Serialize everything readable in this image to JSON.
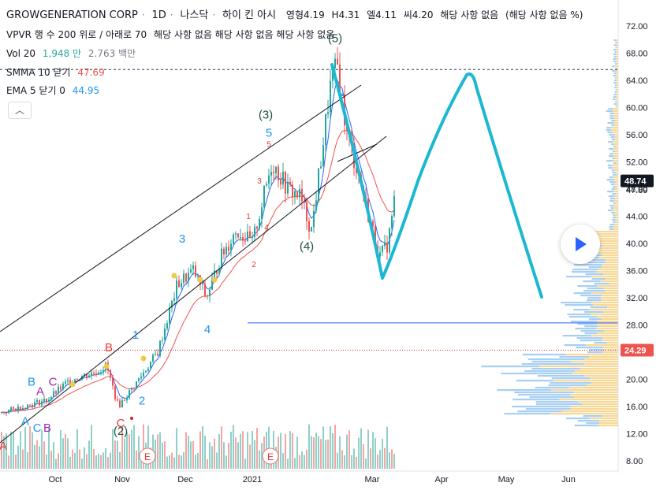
{
  "header": {
    "symbol": "GROWGENERATION CORP",
    "interval": "1D",
    "exchange": "나스닥",
    "source": "하이 킨 아시",
    "open": "영형4.19",
    "high": "H4.31",
    "low": "엘4.11",
    "close": "씨4.20",
    "na1": "해당 사항 없음",
    "na2": "(해당 사항 없음 %)"
  },
  "indicators": {
    "vpvr": "VPVR 행 수 200 위로 / 아래로 70",
    "vpvr_values": "해당 사항 없음 해당 사항 없음 해당 사항 없음",
    "vol_label": "Vol 20",
    "vol_val1": "1,948 만",
    "vol_val2": "2.763 백만",
    "smma_label": "SMMA 10 닫기",
    "smma_val": "47.69",
    "ema_label": "EMA 5 닫기 0",
    "ema_val": "44.95",
    "collapse_glyph": "︿"
  },
  "colors": {
    "up": "#26a69a",
    "down": "#ef5350",
    "smma": "#ef5350",
    "ema": "#2962ff",
    "projection": "#1cb8d2",
    "channel": "#131722",
    "support_line": "#2962ff",
    "wave_count_dark": "#1e5142",
    "wave_count_blue": "#2196f3",
    "abc_red": "#e53935",
    "price_tag_current": "#131722",
    "price_tag_support": "#ef5350"
  },
  "chart_data": {
    "type": "candlestick",
    "y_axis_ticks": [
      "72.00",
      "68.00",
      "64.00",
      "60.00",
      "56.00",
      "52.00",
      "48.00",
      "44.00",
      "40.00",
      "36.00",
      "32.00",
      "28.00",
      "24.00",
      "20.00",
      "16.00",
      "12.00",
      "8.00"
    ],
    "y_range": [
      6,
      74
    ],
    "x_axis_labels": [
      "Oct",
      "Nov",
      "Dec",
      "2021",
      "Mar",
      "Apr",
      "May",
      "Jun"
    ],
    "current_price": "48.74",
    "secondary_price": "47.89",
    "red_dotted_level": "24.29",
    "upper_dotted_level": 65.6,
    "blue_support_level": 28.3,
    "wave_labels": [
      {
        "text": "(5)",
        "price": 69.6,
        "x": 425,
        "color": "#1e5142"
      },
      {
        "text": "(3)",
        "price": 58.4,
        "x": 337,
        "color": "#1e5142"
      },
      {
        "text": "5",
        "price": 55.7,
        "x": 341,
        "color": "#2196f3"
      },
      {
        "text": "(4)",
        "price": 39.0,
        "x": 389,
        "color": "#1e5142"
      },
      {
        "text": "3",
        "price": 40.1,
        "x": 231,
        "color": "#2196f3"
      },
      {
        "text": "4",
        "price": 26.8,
        "x": 263,
        "color": "#2196f3"
      },
      {
        "text": "1",
        "price": 26.0,
        "x": 172,
        "color": "#2196f3"
      },
      {
        "text": "2",
        "price": 16.3,
        "x": 180,
        "color": "#2196f3"
      },
      {
        "text": "B",
        "price": 24.1,
        "x": 138,
        "color": "#e53935"
      },
      {
        "text": "C",
        "price": 13.0,
        "x": 153,
        "color": "#e53935"
      },
      {
        "text": "(2)",
        "price": 11.8,
        "x": 153,
        "color": "#1e5142"
      },
      {
        "text": "B",
        "price": 19.1,
        "x": 40,
        "color": "#2196f3"
      },
      {
        "text": "C",
        "price": 19.1,
        "x": 67,
        "color": "#9c27b0"
      },
      {
        "text": "A",
        "price": 17.7,
        "x": 51,
        "color": "#9c27b0"
      },
      {
        "text": "A",
        "price": 13.3,
        "x": 32,
        "color": "#2196f3"
      },
      {
        "text": "C",
        "price": 12.3,
        "x": 47,
        "color": "#2196f3"
      },
      {
        "text": "B",
        "price": 12.3,
        "x": 60,
        "color": "#9c27b0"
      },
      {
        "text": "A",
        "price": 9.6,
        "x": 4,
        "color": "#e53935"
      },
      {
        "text": "5",
        "price": 54.2,
        "x": 341,
        "color": "#e53935",
        "small": true
      },
      {
        "text": "3",
        "price": 48.8,
        "x": 329,
        "color": "#e53935",
        "small": true
      },
      {
        "text": "1",
        "price": 43.6,
        "x": 315,
        "color": "#e53935",
        "small": true
      },
      {
        "text": "4",
        "price": 42.0,
        "x": 338,
        "color": "#e53935",
        "small": true
      },
      {
        "text": "2",
        "price": 36.5,
        "x": 322,
        "color": "#e53935",
        "small": true
      }
    ],
    "event_markers": [
      {
        "text": "E",
        "x": 187
      },
      {
        "text": "E",
        "x": 343
      }
    ]
  }
}
